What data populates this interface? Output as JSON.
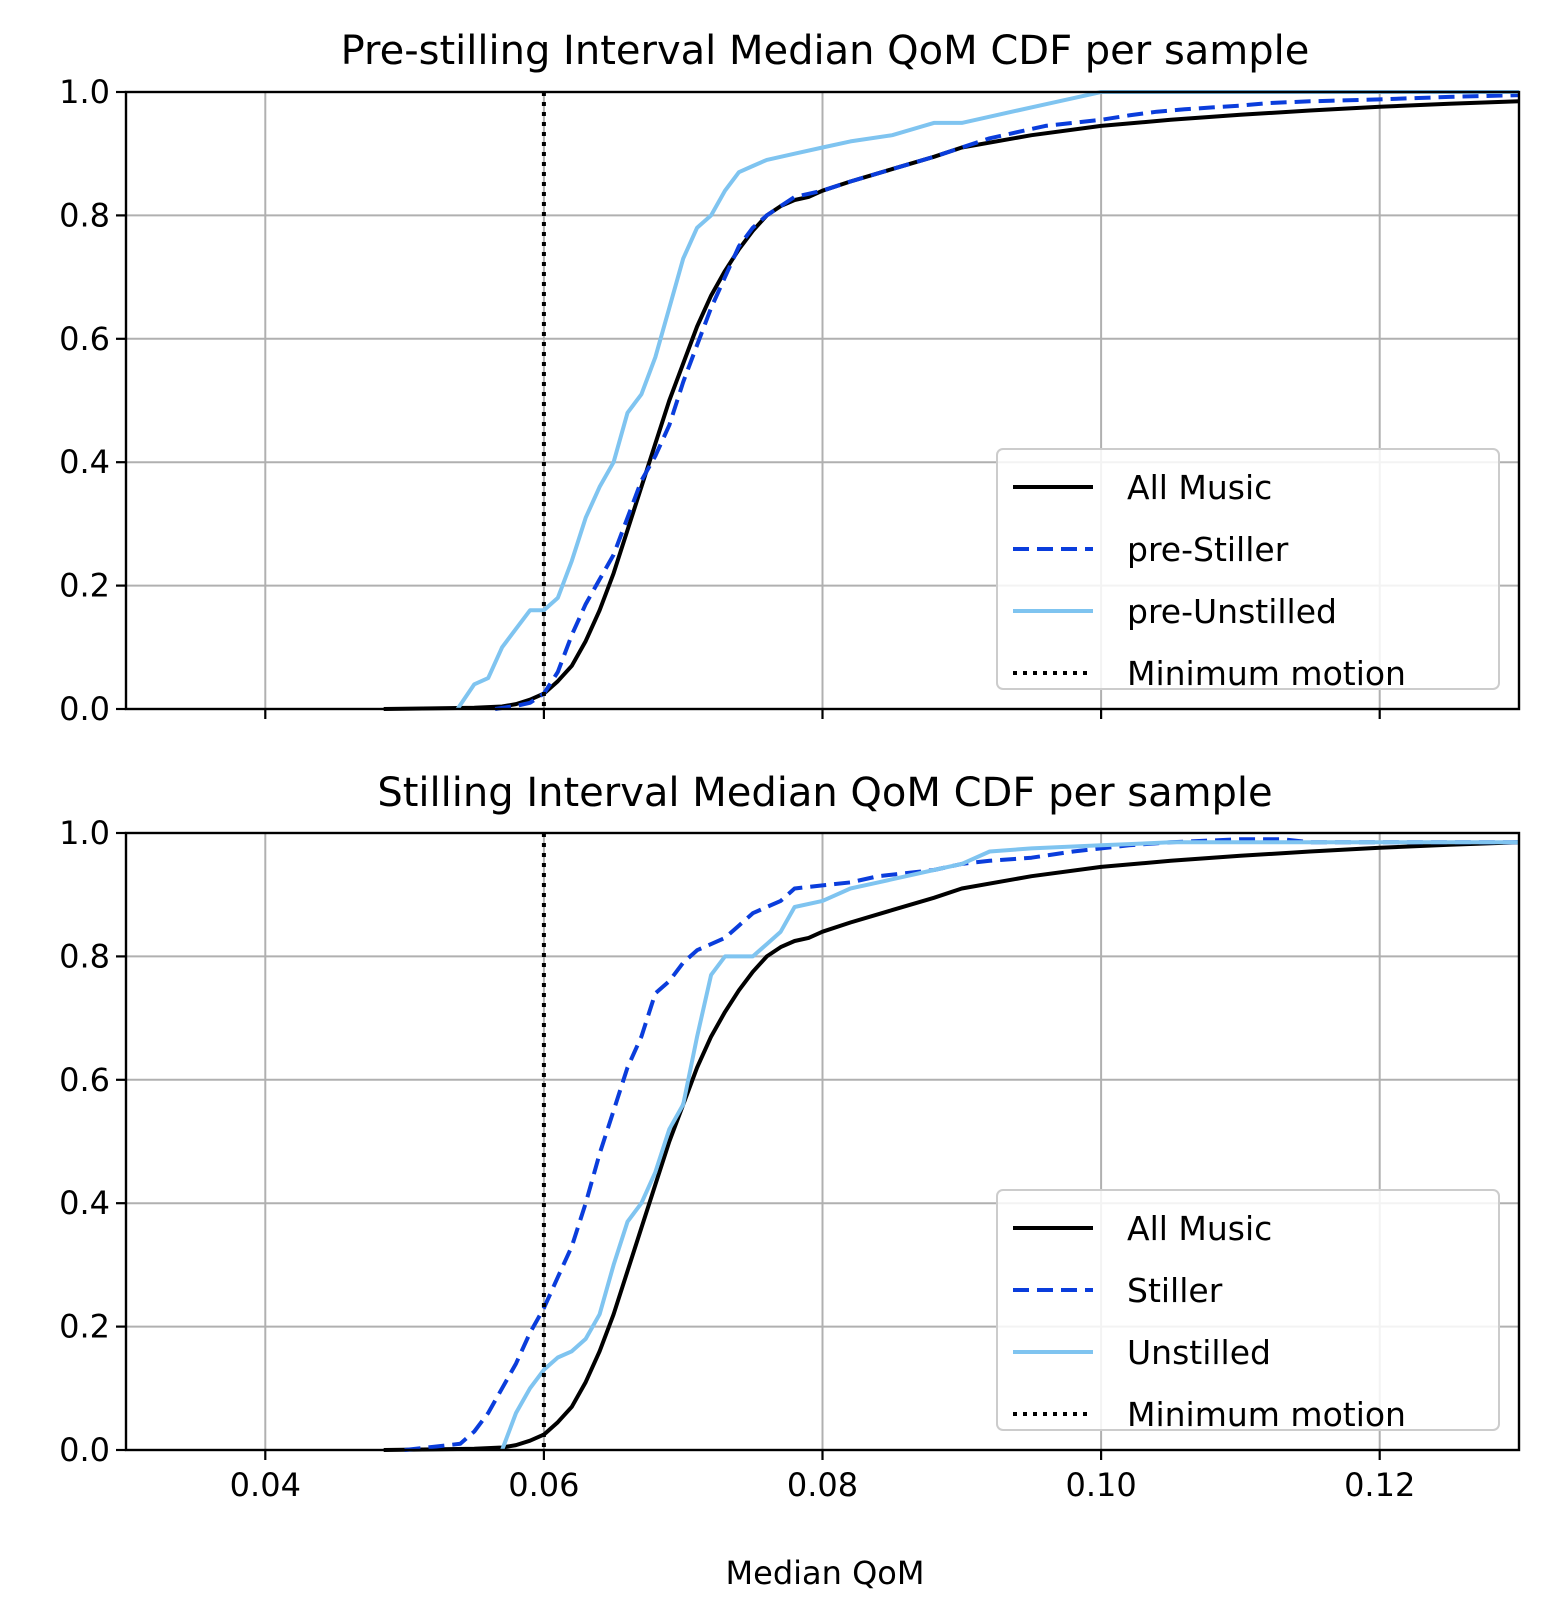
{
  "colors": {
    "all_music": "#000000",
    "stiller": "#0a3ddc",
    "unstilled": "#7fc4f0",
    "minimum": "#000000",
    "grid": "#b0b0b0"
  },
  "xlabel": "Median QoM",
  "chart_data": [
    {
      "type": "line",
      "title": "Pre-stilling Interval Median QoM CDF per sample",
      "xlim": [
        0.03,
        0.13
      ],
      "ylim": [
        0,
        1
      ],
      "xticks": [
        0.04,
        0.06,
        0.08,
        0.1,
        0.12
      ],
      "xtick_labels": [
        "0.04",
        "0.06",
        "0.08",
        "0.10",
        "0.12"
      ],
      "yticks": [
        0.0,
        0.2,
        0.4,
        0.6,
        0.8,
        1.0
      ],
      "ytick_labels": [
        "0.0",
        "0.2",
        "0.4",
        "0.6",
        "0.8",
        "1.0"
      ],
      "grid": true,
      "legend_position": "lower-right",
      "vline": {
        "name": "Minimum motion",
        "x": 0.06
      },
      "series": [
        {
          "name": "All Music",
          "style": "solid",
          "color_key": "all_music",
          "x": [
            0.0485,
            0.052,
            0.055,
            0.057,
            0.058,
            0.059,
            0.06,
            0.061,
            0.062,
            0.063,
            0.064,
            0.065,
            0.066,
            0.067,
            0.068,
            0.069,
            0.07,
            0.071,
            0.072,
            0.073,
            0.074,
            0.075,
            0.076,
            0.077,
            0.078,
            0.079,
            0.08,
            0.082,
            0.085,
            0.088,
            0.09,
            0.095,
            0.1,
            0.105,
            0.11,
            0.115,
            0.12,
            0.125,
            0.13
          ],
          "y": [
            0.0,
            0.001,
            0.002,
            0.004,
            0.008,
            0.015,
            0.025,
            0.045,
            0.07,
            0.11,
            0.16,
            0.22,
            0.29,
            0.36,
            0.43,
            0.5,
            0.56,
            0.62,
            0.67,
            0.71,
            0.745,
            0.775,
            0.8,
            0.815,
            0.825,
            0.83,
            0.84,
            0.855,
            0.875,
            0.895,
            0.91,
            0.93,
            0.945,
            0.955,
            0.963,
            0.97,
            0.976,
            0.981,
            0.985
          ]
        },
        {
          "name": "pre-Stiller",
          "style": "dashed",
          "color_key": "stiller",
          "x": [
            0.0565,
            0.058,
            0.059,
            0.06,
            0.061,
            0.062,
            0.063,
            0.064,
            0.065,
            0.066,
            0.067,
            0.068,
            0.069,
            0.07,
            0.071,
            0.072,
            0.073,
            0.074,
            0.075,
            0.076,
            0.077,
            0.078,
            0.079,
            0.08,
            0.082,
            0.085,
            0.088,
            0.09,
            0.092,
            0.094,
            0.096,
            0.1,
            0.102,
            0.104,
            0.106,
            0.108,
            0.11,
            0.112,
            0.115,
            0.12,
            0.125,
            0.13
          ],
          "y": [
            0.0,
            0.005,
            0.01,
            0.025,
            0.06,
            0.12,
            0.17,
            0.21,
            0.25,
            0.31,
            0.37,
            0.41,
            0.46,
            0.53,
            0.59,
            0.65,
            0.7,
            0.75,
            0.78,
            0.8,
            0.815,
            0.83,
            0.835,
            0.84,
            0.855,
            0.875,
            0.895,
            0.91,
            0.925,
            0.935,
            0.945,
            0.955,
            0.962,
            0.968,
            0.972,
            0.975,
            0.978,
            0.982,
            0.985,
            0.988,
            0.992,
            0.995
          ]
        },
        {
          "name": "pre-Unstilled",
          "style": "solid",
          "color_key": "unstilled",
          "x": [
            0.0538,
            0.055,
            0.056,
            0.057,
            0.058,
            0.059,
            0.06,
            0.061,
            0.062,
            0.063,
            0.064,
            0.065,
            0.066,
            0.067,
            0.068,
            0.069,
            0.07,
            0.071,
            0.072,
            0.073,
            0.074,
            0.075,
            0.076,
            0.078,
            0.08,
            0.082,
            0.085,
            0.088,
            0.09,
            0.092,
            0.094,
            0.096,
            0.098,
            0.1,
            0.13
          ],
          "y": [
            0.0,
            0.04,
            0.05,
            0.1,
            0.13,
            0.16,
            0.16,
            0.18,
            0.24,
            0.31,
            0.36,
            0.4,
            0.48,
            0.51,
            0.57,
            0.65,
            0.73,
            0.78,
            0.8,
            0.84,
            0.87,
            0.88,
            0.89,
            0.9,
            0.91,
            0.92,
            0.93,
            0.95,
            0.95,
            0.96,
            0.97,
            0.98,
            0.99,
            1.0,
            1.0
          ]
        },
        {
          "name": "Minimum motion",
          "style": "dotted",
          "color_key": "minimum"
        }
      ]
    },
    {
      "type": "line",
      "title": "Stilling Interval Median QoM CDF per sample",
      "xlim": [
        0.03,
        0.13
      ],
      "ylim": [
        0,
        1
      ],
      "xticks": [
        0.04,
        0.06,
        0.08,
        0.1,
        0.12
      ],
      "xtick_labels": [
        "0.04",
        "0.06",
        "0.08",
        "0.10",
        "0.12"
      ],
      "yticks": [
        0.0,
        0.2,
        0.4,
        0.6,
        0.8,
        1.0
      ],
      "ytick_labels": [
        "0.0",
        "0.2",
        "0.4",
        "0.6",
        "0.8",
        "1.0"
      ],
      "grid": true,
      "legend_position": "lower-right",
      "vline": {
        "name": "Minimum motion",
        "x": 0.06
      },
      "series": [
        {
          "name": "All Music",
          "style": "solid",
          "color_key": "all_music",
          "x": [
            0.0485,
            0.052,
            0.055,
            0.057,
            0.058,
            0.059,
            0.06,
            0.061,
            0.062,
            0.063,
            0.064,
            0.065,
            0.066,
            0.067,
            0.068,
            0.069,
            0.07,
            0.071,
            0.072,
            0.073,
            0.074,
            0.075,
            0.076,
            0.077,
            0.078,
            0.079,
            0.08,
            0.082,
            0.085,
            0.088,
            0.09,
            0.095,
            0.1,
            0.105,
            0.11,
            0.115,
            0.12,
            0.125,
            0.13
          ],
          "y": [
            0.0,
            0.001,
            0.002,
            0.004,
            0.008,
            0.015,
            0.025,
            0.045,
            0.07,
            0.11,
            0.16,
            0.22,
            0.29,
            0.36,
            0.43,
            0.5,
            0.56,
            0.62,
            0.67,
            0.71,
            0.745,
            0.775,
            0.8,
            0.815,
            0.825,
            0.83,
            0.84,
            0.855,
            0.875,
            0.895,
            0.91,
            0.93,
            0.945,
            0.955,
            0.963,
            0.97,
            0.976,
            0.981,
            0.985
          ]
        },
        {
          "name": "Stiller",
          "style": "dashed",
          "color_key": "stiller",
          "x": [
            0.05,
            0.054,
            0.055,
            0.056,
            0.057,
            0.058,
            0.059,
            0.06,
            0.061,
            0.062,
            0.063,
            0.064,
            0.065,
            0.066,
            0.067,
            0.068,
            0.069,
            0.07,
            0.071,
            0.072,
            0.073,
            0.074,
            0.075,
            0.076,
            0.077,
            0.078,
            0.08,
            0.082,
            0.084,
            0.086,
            0.088,
            0.09,
            0.092,
            0.095,
            0.098,
            0.1,
            0.102,
            0.105,
            0.11,
            0.113,
            0.115,
            0.13
          ],
          "y": [
            0.0,
            0.01,
            0.03,
            0.06,
            0.1,
            0.14,
            0.19,
            0.23,
            0.28,
            0.33,
            0.4,
            0.48,
            0.55,
            0.62,
            0.67,
            0.74,
            0.76,
            0.79,
            0.81,
            0.82,
            0.83,
            0.85,
            0.87,
            0.88,
            0.89,
            0.91,
            0.915,
            0.92,
            0.93,
            0.935,
            0.94,
            0.95,
            0.955,
            0.96,
            0.97,
            0.975,
            0.98,
            0.985,
            0.99,
            0.99,
            0.985,
            0.985
          ]
        },
        {
          "name": "Unstilled",
          "style": "solid",
          "color_key": "unstilled",
          "x": [
            0.057,
            0.058,
            0.059,
            0.06,
            0.061,
            0.062,
            0.063,
            0.064,
            0.065,
            0.066,
            0.067,
            0.068,
            0.069,
            0.07,
            0.071,
            0.072,
            0.073,
            0.074,
            0.075,
            0.076,
            0.077,
            0.078,
            0.08,
            0.082,
            0.084,
            0.086,
            0.088,
            0.09,
            0.092,
            0.095,
            0.1,
            0.105,
            0.11,
            0.13
          ],
          "y": [
            0.0,
            0.06,
            0.1,
            0.13,
            0.15,
            0.16,
            0.18,
            0.22,
            0.3,
            0.37,
            0.4,
            0.45,
            0.52,
            0.56,
            0.67,
            0.77,
            0.8,
            0.8,
            0.8,
            0.82,
            0.84,
            0.88,
            0.89,
            0.91,
            0.92,
            0.93,
            0.94,
            0.95,
            0.97,
            0.975,
            0.98,
            0.985,
            0.985,
            0.985
          ]
        },
        {
          "name": "Minimum motion",
          "style": "dotted",
          "color_key": "minimum"
        }
      ]
    }
  ]
}
